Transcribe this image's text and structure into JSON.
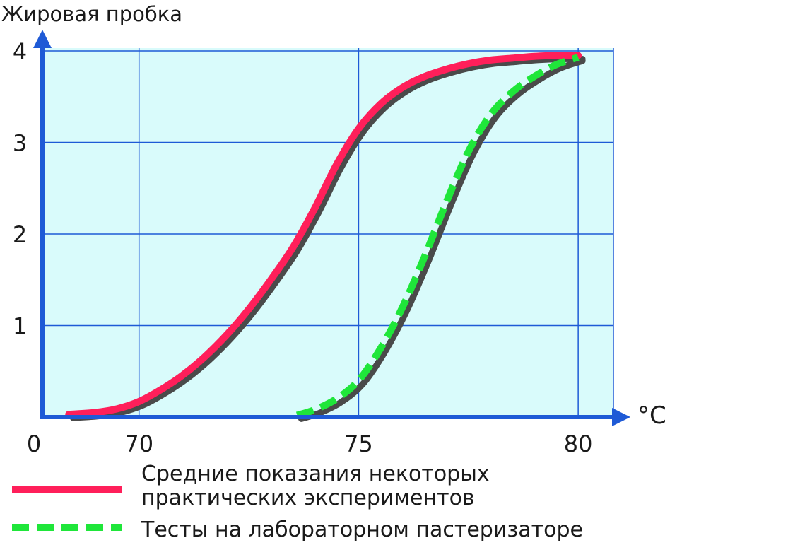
{
  "chart_data": {
    "type": "line",
    "ylabel": "Жировая пробка",
    "xlabel": "°C",
    "origin_label": "0",
    "x_ticks": [
      70,
      75,
      80
    ],
    "y_ticks": [
      1,
      2,
      3,
      4
    ],
    "xlim": [
      67.8,
      80.4
    ],
    "ylim": [
      0,
      4
    ],
    "grid": true,
    "colors": {
      "plot_background": "#d9fbfb",
      "grid": "#1e5ad6",
      "axis": "#1e5ad6",
      "shadow": "#4a4a4a"
    },
    "series": [
      {
        "name": "Средние показания некоторых практических экспериментов",
        "color": "#ff1f5a",
        "style": "solid",
        "x": [
          68.4,
          69.0,
          69.5,
          70.0,
          70.5,
          71.0,
          71.5,
          72.0,
          72.5,
          73.0,
          73.5,
          74.0,
          74.5,
          75.0,
          75.5,
          76.0,
          76.5,
          77.0,
          77.5,
          78.0,
          78.5,
          79.0,
          79.5,
          80.0
        ],
        "y": [
          0.03,
          0.05,
          0.09,
          0.17,
          0.3,
          0.46,
          0.66,
          0.9,
          1.18,
          1.5,
          1.85,
          2.28,
          2.76,
          3.15,
          3.42,
          3.6,
          3.72,
          3.8,
          3.86,
          3.9,
          3.92,
          3.94,
          3.95,
          3.95
        ]
      },
      {
        "name": "Тесты на лабораторном пастеризаторе",
        "color": "#1fe63a",
        "style": "dashed",
        "x": [
          73.6,
          74.0,
          74.5,
          75.0,
          75.5,
          76.0,
          76.5,
          77.0,
          77.5,
          78.0,
          78.5,
          79.0,
          79.5,
          80.0
        ],
        "y": [
          0.02,
          0.08,
          0.2,
          0.4,
          0.75,
          1.2,
          1.75,
          2.35,
          2.9,
          3.3,
          3.55,
          3.72,
          3.85,
          3.93
        ]
      }
    ]
  },
  "legend": [
    {
      "line1": "Средние показания некоторых",
      "line2": "практических экспериментов"
    },
    {
      "line1": "Тесты на лабораторном пастеризаторе",
      "line2": ""
    }
  ]
}
